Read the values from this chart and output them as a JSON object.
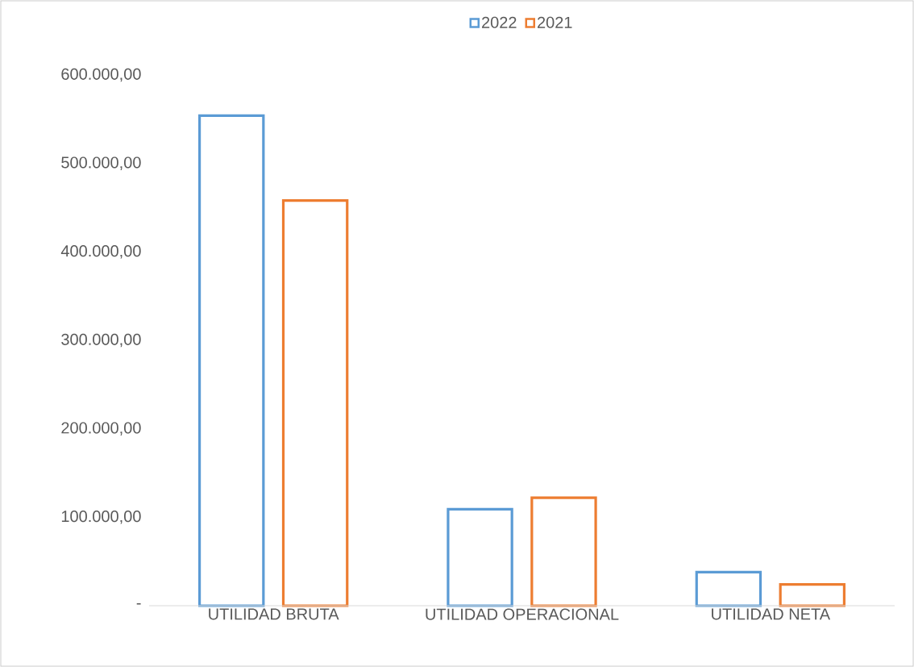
{
  "chart_data": {
    "type": "bar",
    "categories": [
      "UTILIDAD BRUTA",
      "UTILIDAD OPERACIONAL",
      "UTILIDAD NETA"
    ],
    "series": [
      {
        "name": "2022",
        "color": "#5b9bd5",
        "values": [
          554000,
          109000,
          38000
        ]
      },
      {
        "name": "2021",
        "color": "#ed7d31",
        "values": [
          458000,
          122000,
          24000
        ]
      }
    ],
    "ylim": [
      0,
      600000
    ],
    "yticks": [
      {
        "value": 0,
        "label": "-"
      },
      {
        "value": 100000,
        "label": "100.000,00"
      },
      {
        "value": 200000,
        "label": "200.000,00"
      },
      {
        "value": 300000,
        "label": "300.000,00"
      },
      {
        "value": 400000,
        "label": "400.000,00"
      },
      {
        "value": 500000,
        "label": "500.000,00"
      },
      {
        "value": 600000,
        "label": "600.000,00"
      }
    ],
    "legend": "top"
  }
}
